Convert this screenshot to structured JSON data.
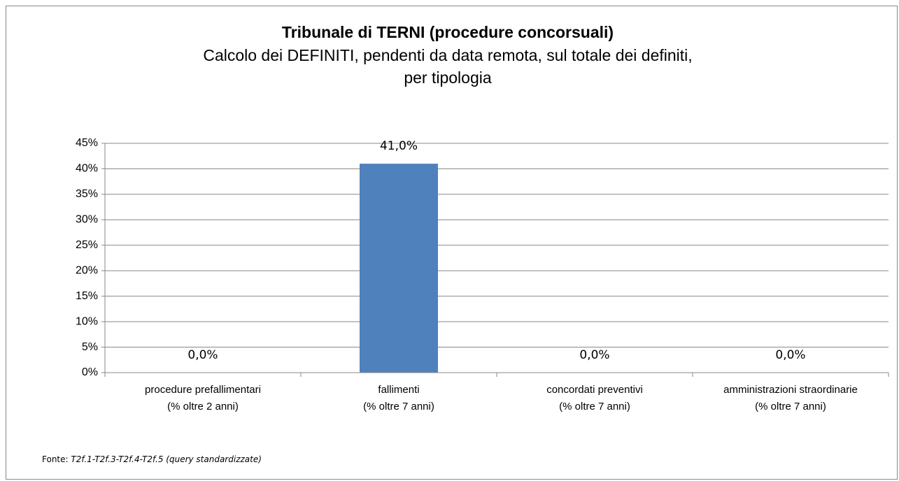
{
  "chart_data": {
    "type": "bar",
    "title": "Tribunale di TERNI (procedure concorsuali)",
    "subtitle": [
      "Calcolo dei DEFINITI,  pendenti da data remota, sul totale dei definiti,",
      "per tipologia"
    ],
    "categories": [
      [
        "procedure prefallimentari",
        "(% oltre 2 anni)"
      ],
      [
        "fallimenti",
        "(% oltre 7 anni)"
      ],
      [
        "concordati preventivi",
        "(% oltre 7 anni)"
      ],
      [
        "amministrazioni straordinarie",
        "(% oltre 7 anni)"
      ]
    ],
    "values": [
      0,
      41,
      0,
      0
    ],
    "value_labels": [
      "0,0%",
      "41,0%",
      "0,0%",
      "0,0%"
    ],
    "color": "#4f81bd",
    "ylim": [
      0,
      45
    ],
    "yticks": [
      {
        "value": 0,
        "label": "0%"
      },
      {
        "value": 5,
        "label": "5%"
      },
      {
        "value": 10,
        "label": "10%"
      },
      {
        "value": 15,
        "label": "15%"
      },
      {
        "value": 20,
        "label": "20%"
      },
      {
        "value": 25,
        "label": "25%"
      },
      {
        "value": 30,
        "label": "30%"
      },
      {
        "value": 35,
        "label": "35%"
      },
      {
        "value": 40,
        "label": "40%"
      },
      {
        "value": 45,
        "label": "45%"
      }
    ],
    "grid": true,
    "source_label": "Fonte:",
    "source": "T2f.1-T2f.3-T2f.4-T2f.5 (query standardizzate)"
  }
}
